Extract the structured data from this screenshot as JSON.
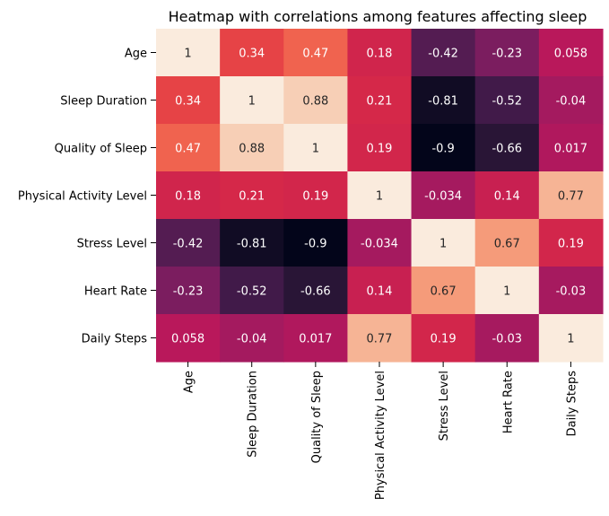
{
  "chart_data": {
    "type": "heatmap",
    "title": "Heatmap with correlations among features affecting sleep",
    "row_labels": [
      "Age",
      "Sleep Duration",
      "Quality of Sleep",
      "Physical Activity Level",
      "Stress Level",
      "Heart Rate",
      "Daily Steps"
    ],
    "col_labels": [
      "Age",
      "Sleep Duration",
      "Quality of Sleep",
      "Physical Activity Level",
      "Stress Level",
      "Heart Rate",
      "Daily Steps"
    ],
    "values": [
      [
        1,
        0.34,
        0.47,
        0.18,
        -0.42,
        -0.23,
        0.058
      ],
      [
        0.34,
        1,
        0.88,
        0.21,
        -0.81,
        -0.52,
        -0.04
      ],
      [
        0.47,
        0.88,
        1,
        0.19,
        -0.9,
        -0.66,
        0.017
      ],
      [
        0.18,
        0.21,
        0.19,
        1,
        -0.034,
        0.14,
        0.77
      ],
      [
        -0.42,
        -0.81,
        -0.9,
        -0.034,
        1,
        0.67,
        0.19
      ],
      [
        -0.23,
        -0.52,
        -0.66,
        0.14,
        0.67,
        1,
        -0.03
      ],
      [
        0.058,
        -0.04,
        0.017,
        0.77,
        0.19,
        -0.03,
        1
      ]
    ],
    "display_values": [
      [
        "1",
        "0.34",
        "0.47",
        "0.18",
        "-0.42",
        "-0.23",
        "0.058"
      ],
      [
        "0.34",
        "1",
        "0.88",
        "0.21",
        "-0.81",
        "-0.52",
        "-0.04"
      ],
      [
        "0.47",
        "0.88",
        "1",
        "0.19",
        "-0.9",
        "-0.66",
        "0.017"
      ],
      [
        "0.18",
        "0.21",
        "0.19",
        "1",
        "-0.034",
        "0.14",
        "0.77"
      ],
      [
        "-0.42",
        "-0.81",
        "-0.9",
        "-0.034",
        "1",
        "0.67",
        "0.19"
      ],
      [
        "-0.23",
        "-0.52",
        "-0.66",
        "0.14",
        "0.67",
        "1",
        "-0.03"
      ],
      [
        "0.058",
        "-0.04",
        "0.017",
        "0.77",
        "0.19",
        "-0.03",
        "1"
      ]
    ],
    "value_range": [
      -0.9,
      1
    ],
    "colormap": "rocket",
    "colorbar": false,
    "annotated": true
  }
}
